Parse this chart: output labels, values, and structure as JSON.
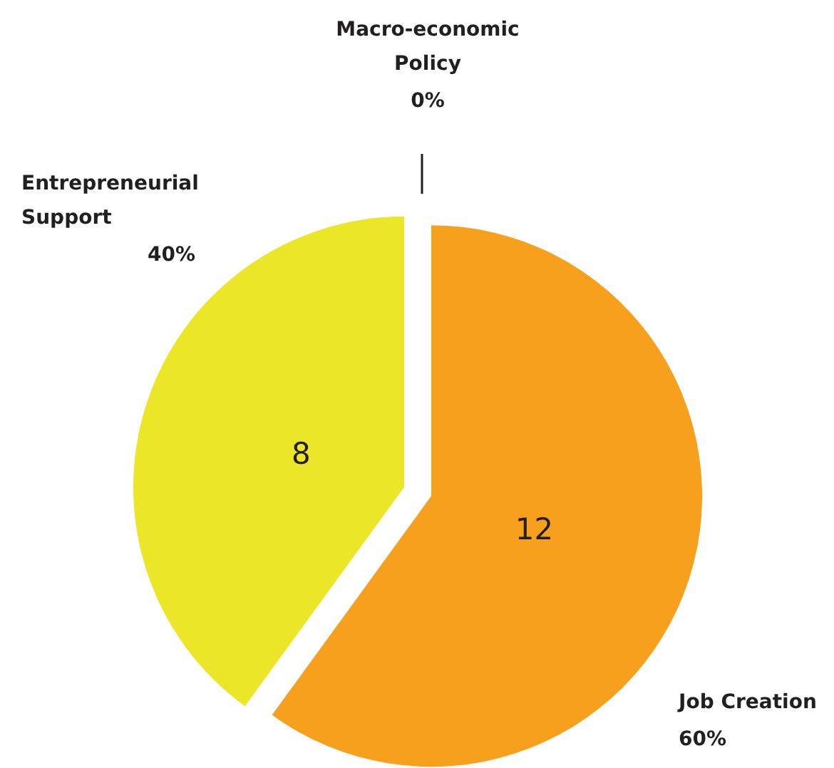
{
  "chart_data": {
    "type": "pie",
    "categories": [
      "Job Creation",
      "Entrepreneurial Support",
      "Macro-economic Policy"
    ],
    "values": [
      12,
      8,
      0
    ],
    "colors": [
      "#f7a01e",
      "#ece628",
      "#231f20"
    ],
    "data_labels": true,
    "annotations": [
      "60%",
      "40%",
      "0%"
    ]
  }
}
